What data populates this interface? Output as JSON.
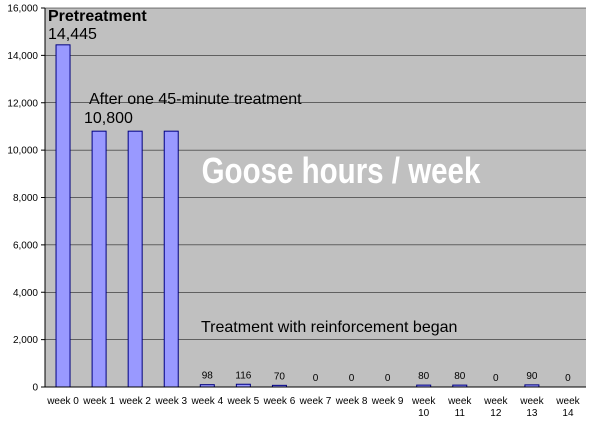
{
  "chart_data": {
    "type": "bar",
    "title": "Goose hours / week",
    "categories": [
      "week 0",
      "week 1",
      "week 2",
      "week 3",
      "week 4",
      "week 5",
      "week 6",
      "week 7",
      "week 8",
      "week 9",
      "week 10",
      "week 11",
      "week 12",
      "week 13",
      "week 14"
    ],
    "values": [
      14445,
      10800,
      10800,
      10800,
      98,
      116,
      70,
      0,
      0,
      0,
      80,
      80,
      0,
      90,
      0
    ],
    "data_labels": [
      "",
      "",
      "",
      "",
      "98",
      "116",
      "70",
      "0",
      "0",
      "0",
      "80",
      "80",
      "0",
      "90",
      "0"
    ],
    "ylim": [
      0,
      16000
    ],
    "yticks": [
      "0",
      "2,000",
      "4,000",
      "6,000",
      "8,000",
      "10,000",
      "12,000",
      "14,000",
      "16,000"
    ],
    "grid": true,
    "colors": {
      "plot_bg": "#c0c0c0",
      "bar_fill": "#9999ff",
      "bar_stroke": "#000080",
      "grid": "#000000",
      "title": "#ffffff"
    },
    "annotations": {
      "pretreatment_label": "Pretreatment",
      "pretreatment_value": "14,445",
      "after_label": "After one 45-minute  treatment",
      "after_value": "10,800",
      "reinforcement_label": "Treatment with reinforcement began"
    }
  }
}
